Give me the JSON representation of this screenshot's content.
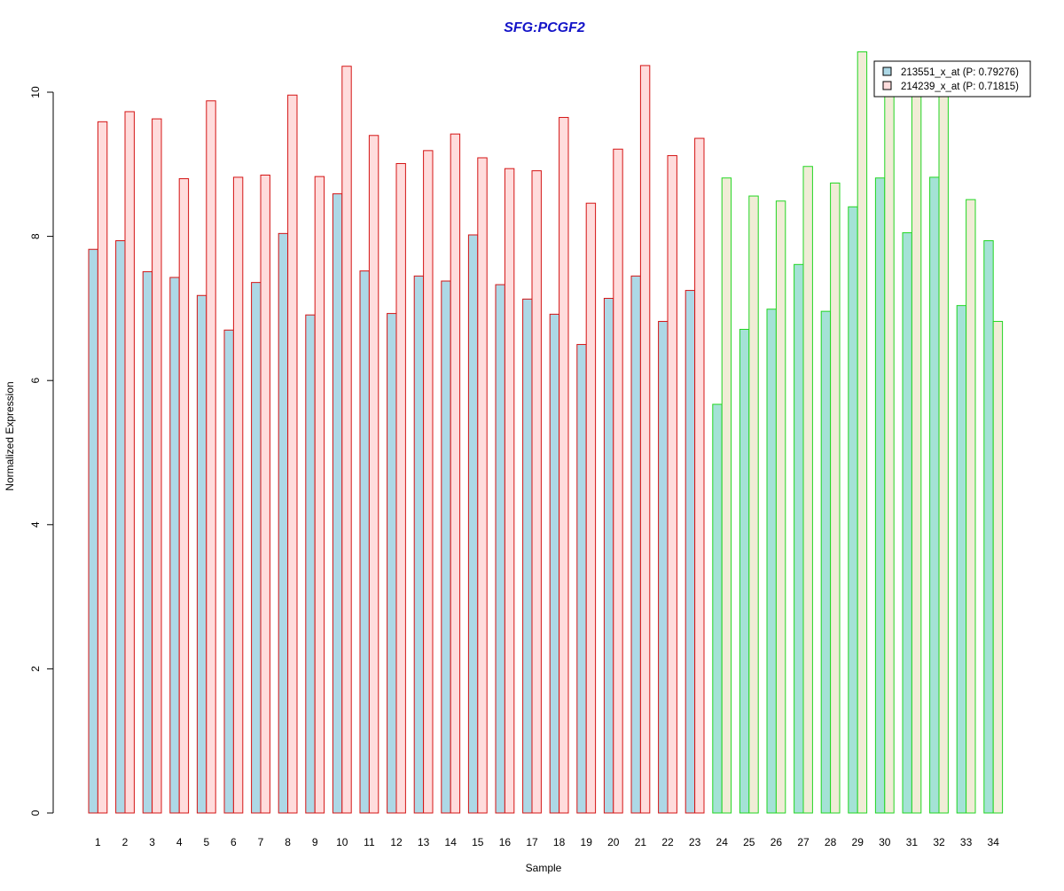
{
  "chart_data": {
    "type": "bar",
    "title": "SFG:PCGF2",
    "xlabel": "Sample",
    "ylabel": "Normalized Expression",
    "ylim": [
      0,
      10.6
    ],
    "yticks": [
      0,
      2,
      4,
      6,
      8,
      10
    ],
    "grid": false,
    "legend_position": "top-right",
    "categories": [
      "1",
      "2",
      "3",
      "4",
      "5",
      "6",
      "7",
      "8",
      "9",
      "10",
      "11",
      "12",
      "13",
      "14",
      "15",
      "16",
      "17",
      "18",
      "19",
      "20",
      "21",
      "22",
      "23",
      "24",
      "25",
      "26",
      "27",
      "28",
      "29",
      "30",
      "31",
      "32",
      "33",
      "34"
    ],
    "group_split_after": 23,
    "series": [
      {
        "name": "213551_x_at (P: 0.79276)",
        "values": [
          7.82,
          7.94,
          7.51,
          7.43,
          7.18,
          6.7,
          7.36,
          8.04,
          6.91,
          8.59,
          7.52,
          6.93,
          7.45,
          7.38,
          8.02,
          7.33,
          7.13,
          6.92,
          6.5,
          7.14,
          7.45,
          6.82,
          7.25,
          5.67,
          6.71,
          6.99,
          7.61,
          6.96,
          8.41,
          8.81,
          8.05,
          8.82,
          7.04,
          7.94
        ]
      },
      {
        "name": "214239_x_at (P: 0.71815)",
        "values": [
          9.59,
          9.73,
          9.63,
          8.8,
          9.88,
          8.82,
          8.85,
          9.96,
          8.83,
          10.36,
          9.4,
          9.01,
          9.19,
          9.42,
          9.09,
          8.94,
          8.91,
          9.65,
          8.46,
          9.21,
          10.37,
          9.12,
          9.36,
          8.81,
          8.56,
          8.49,
          8.97,
          8.74,
          10.56,
          10.0,
          10.0,
          10.0,
          8.51,
          6.82
        ]
      }
    ]
  },
  "colors": {
    "title": "#1414c8",
    "group1_series1_fill": "#add8e6",
    "group1_series2_fill": "#ffdcdc",
    "group1_border": "#d41414",
    "group2_series1_fill": "#a4e2d6",
    "group2_series2_fill": "#f0ecd6",
    "group2_border": "#22d622",
    "axis": "#000000"
  }
}
